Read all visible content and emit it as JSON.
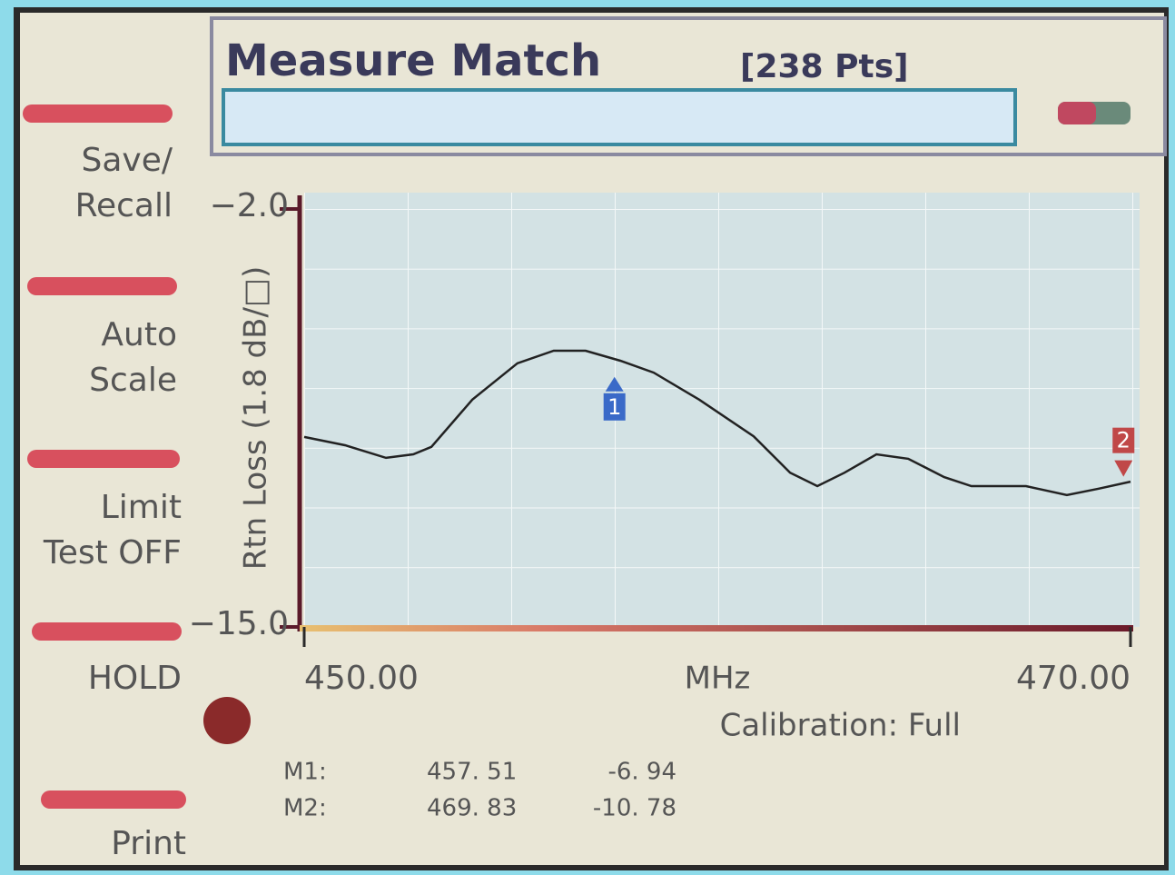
{
  "screen": {
    "title": "Measure Match",
    "points": "[238 Pts]",
    "softkeys": [
      [
        "Save/",
        "Recall"
      ],
      [
        "Auto",
        "Scale"
      ],
      [
        "Limit",
        "Test OFF"
      ],
      [
        "HOLD"
      ],
      [
        "Print"
      ]
    ],
    "calibration": "Calibration:  Full"
  },
  "chart_data": {
    "type": "line",
    "y_label": "Rtn Loss (1.8 dB/□)",
    "x_label": "MHz",
    "x": [
      450,
      451.0,
      451.98,
      452.64,
      453.08,
      454.07,
      455.16,
      456.04,
      456.81,
      457.65,
      458.46,
      459.56,
      460.88,
      461.76,
      462.42,
      463.08,
      463.85,
      464.62,
      465.49,
      466.15,
      467.47,
      468.46,
      469.23,
      470
    ],
    "values": [
      -9.09,
      -9.35,
      -9.74,
      -9.63,
      -9.4,
      -7.93,
      -6.8,
      -6.41,
      -6.41,
      -6.72,
      -7.09,
      -7.93,
      -9.07,
      -10.2,
      -10.62,
      -10.2,
      -9.63,
      -9.77,
      -10.34,
      -10.62,
      -10.62,
      -10.9,
      -10.7,
      -10.48
    ],
    "color": "#222222",
    "xlim": [
      450,
      470
    ],
    "xticks": [
      {
        "value": 450,
        "label": "450.00"
      },
      {
        "value": 470,
        "label": "470.00"
      }
    ],
    "ylim": [
      -15,
      -2
    ],
    "yticks": [
      {
        "value": -2,
        "label": "−2.0"
      },
      {
        "value": -15,
        "label": "−15.0"
      }
    ],
    "grid": true,
    "markers": [
      {
        "name": "M1:",
        "flag": "1",
        "x": 457.51,
        "x_label": "457. 51",
        "y": -6.94,
        "y_label": "-6. 94"
      },
      {
        "name": "M2:",
        "flag": "2",
        "x": 469.83,
        "x_label": "469. 83",
        "y": -10.78,
        "y_label": "-10. 78"
      }
    ]
  }
}
